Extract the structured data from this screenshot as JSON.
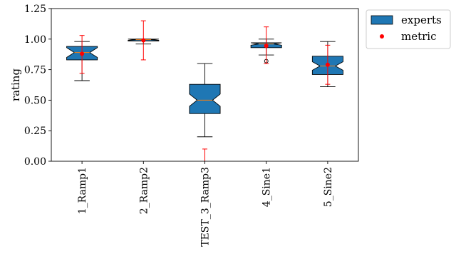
{
  "chart_data": {
    "type": "box",
    "ylabel": "rating",
    "ylim": [
      0.0,
      1.25
    ],
    "yticks": [
      "0.00",
      "0.25",
      "0.50",
      "0.75",
      "1.00",
      "1.25"
    ],
    "categories": [
      "1_Ramp1",
      "2_Ramp2",
      "TEST_3_Ramp3",
      "4_Sine1",
      "5_Sine2"
    ],
    "legend": {
      "position": "outside-top-right",
      "entries": [
        "experts",
        "metric"
      ]
    },
    "series": [
      {
        "name": "experts",
        "kind": "notched-box",
        "color": "#1f77b4",
        "boxes": [
          {
            "whisker_low": 0.66,
            "q1": 0.83,
            "median": 0.89,
            "q3": 0.94,
            "whisker_high": 0.98,
            "notch_low": 0.85,
            "notch_high": 0.93,
            "fliers": []
          },
          {
            "whisker_low": 0.96,
            "q1": 0.985,
            "median": 0.995,
            "q3": 1.0,
            "whisker_high": 1.0,
            "notch_low": 0.99,
            "notch_high": 1.0,
            "fliers": []
          },
          {
            "whisker_low": 0.2,
            "q1": 0.39,
            "median": 0.5,
            "q3": 0.63,
            "whisker_high": 0.8,
            "notch_low": 0.45,
            "notch_high": 0.55,
            "fliers": []
          },
          {
            "whisker_low": 0.87,
            "q1": 0.93,
            "median": 0.96,
            "q3": 0.97,
            "whisker_high": 1.0,
            "notch_low": 0.95,
            "notch_high": 0.975,
            "fliers": [
              0.82
            ]
          },
          {
            "whisker_low": 0.61,
            "q1": 0.71,
            "median": 0.78,
            "q3": 0.86,
            "whisker_high": 0.98,
            "notch_low": 0.745,
            "notch_high": 0.815,
            "fliers": []
          }
        ]
      },
      {
        "name": "metric",
        "kind": "point-with-error-bar",
        "color": "#ff0000",
        "points": [
          {
            "y": 0.88,
            "low": 0.72,
            "high": 1.03
          },
          {
            "y": 0.99,
            "low": 0.83,
            "high": 1.15
          },
          {
            "y": -0.06,
            "low": -0.21,
            "high": 0.1
          },
          {
            "y": 0.945,
            "low": 0.8,
            "high": 1.1
          },
          {
            "y": 0.79,
            "low": 0.63,
            "high": 0.95
          }
        ]
      }
    ]
  }
}
